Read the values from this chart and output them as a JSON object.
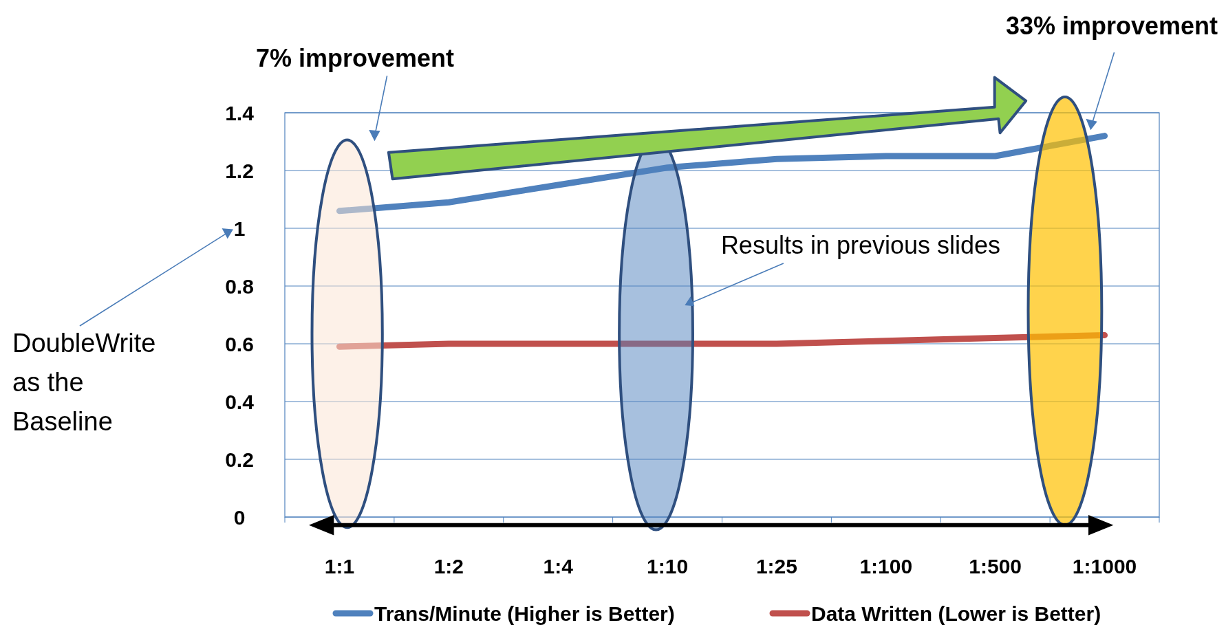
{
  "chart_data": {
    "type": "line",
    "categories": [
      "1:1",
      "1:2",
      "1:4",
      "1:10",
      "1:25",
      "1:100",
      "1:500",
      "1:1000"
    ],
    "series": [
      {
        "name": "Trans/Minute (Higher is Better)",
        "color": "#4f81bd",
        "values": [
          1.06,
          1.09,
          1.15,
          1.21,
          1.24,
          1.25,
          1.25,
          1.32
        ]
      },
      {
        "name": "Data Written (Lower is Better)",
        "color": "#c0504d",
        "values": [
          0.59,
          0.6,
          0.6,
          0.6,
          0.6,
          0.61,
          0.62,
          0.63
        ]
      }
    ],
    "ylim": [
      0,
      1.4
    ],
    "yticks": [
      0,
      0.2,
      0.4,
      0.6,
      0.8,
      1,
      1.2,
      1.4
    ],
    "grid": "y",
    "legend": "bottom",
    "marker": "none",
    "line_style": "solid",
    "annotations": [
      "7% improvement",
      "33% improvement",
      "Results in previous slides",
      "DoubleWrite as the Baseline"
    ]
  }
}
